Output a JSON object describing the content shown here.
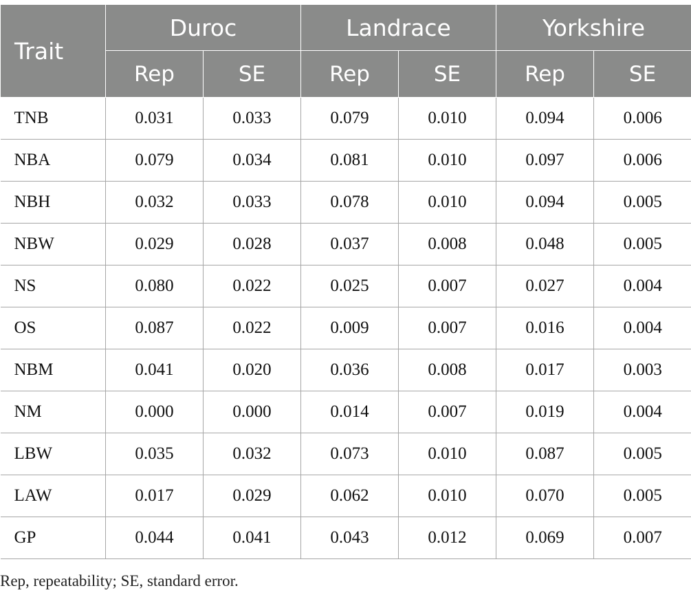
{
  "table": {
    "trait_header": "Trait",
    "groups": [
      "Duroc",
      "Landrace",
      "Yorkshire"
    ],
    "subheaders": [
      "Rep",
      "SE",
      "Rep",
      "SE",
      "Rep",
      "SE"
    ],
    "rows": [
      {
        "trait": "TNB",
        "values": [
          "0.031",
          "0.033",
          "0.079",
          "0.010",
          "0.094",
          "0.006"
        ]
      },
      {
        "trait": "NBA",
        "values": [
          "0.079",
          "0.034",
          "0.081",
          "0.010",
          "0.097",
          "0.006"
        ]
      },
      {
        "trait": "NBH",
        "values": [
          "0.032",
          "0.033",
          "0.078",
          "0.010",
          "0.094",
          "0.005"
        ]
      },
      {
        "trait": "NBW",
        "values": [
          "0.029",
          "0.028",
          "0.037",
          "0.008",
          "0.048",
          "0.005"
        ]
      },
      {
        "trait": "NS",
        "values": [
          "0.080",
          "0.022",
          "0.025",
          "0.007",
          "0.027",
          "0.004"
        ]
      },
      {
        "trait": "OS",
        "values": [
          "0.087",
          "0.022",
          "0.009",
          "0.007",
          "0.016",
          "0.004"
        ]
      },
      {
        "trait": "NBM",
        "values": [
          "0.041",
          "0.020",
          "0.036",
          "0.008",
          "0.017",
          "0.003"
        ]
      },
      {
        "trait": "NM",
        "values": [
          "0.000",
          "0.000",
          "0.014",
          "0.007",
          "0.019",
          "0.004"
        ]
      },
      {
        "trait": "LBW",
        "values": [
          "0.035",
          "0.032",
          "0.073",
          "0.010",
          "0.087",
          "0.005"
        ]
      },
      {
        "trait": "LAW",
        "values": [
          "0.017",
          "0.029",
          "0.062",
          "0.010",
          "0.070",
          "0.005"
        ]
      },
      {
        "trait": "GP",
        "values": [
          "0.044",
          "0.041",
          "0.043",
          "0.012",
          "0.069",
          "0.007"
        ]
      }
    ]
  },
  "footnote": "Rep, repeatability; SE, standard error.",
  "colors": {
    "header_bg": "#8a8b8a",
    "header_text": "#ffffff",
    "grid_line": "#a6a6a6"
  }
}
